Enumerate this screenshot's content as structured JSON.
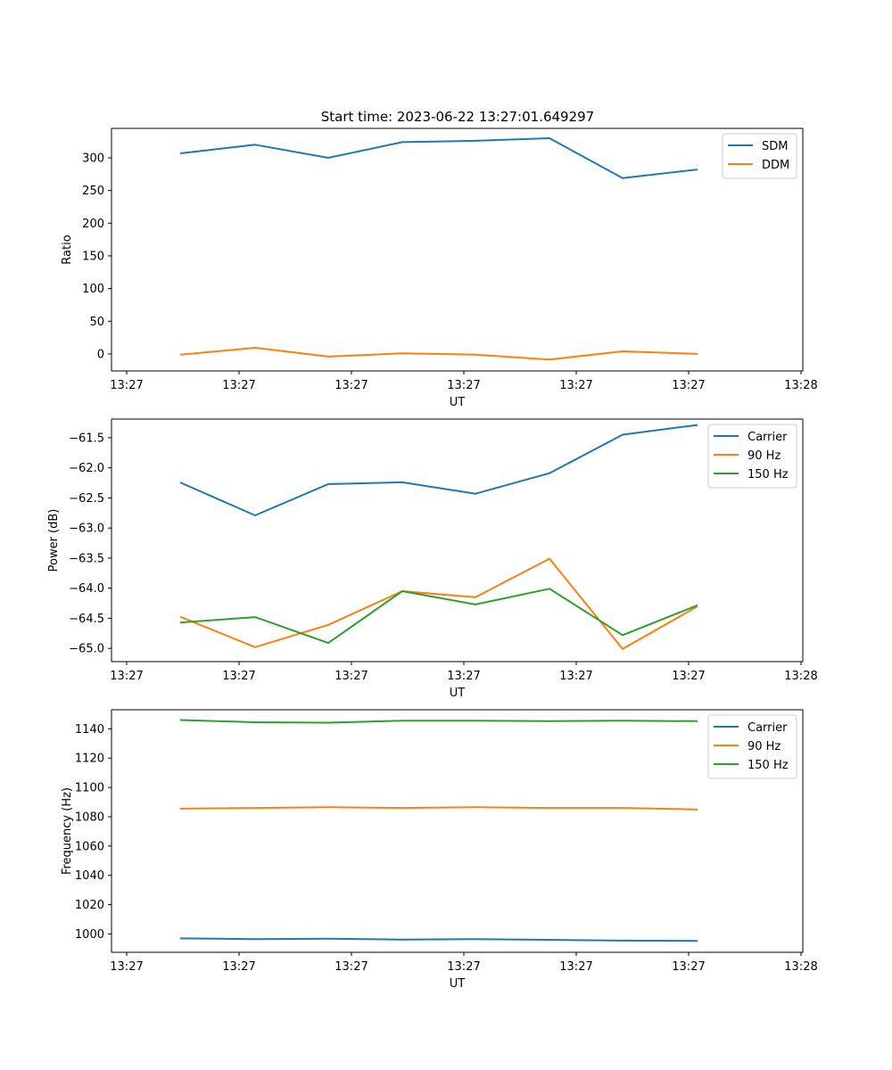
{
  "figure": {
    "title": "Start time: 2023-06-22 13:27:01.649297"
  },
  "chart_data": [
    {
      "type": "line",
      "xlabel": "UT",
      "ylabel": "Ratio",
      "x_tick_labels": [
        "13:27",
        "13:27",
        "13:27",
        "13:27",
        "13:27",
        "13:27",
        "13:28"
      ],
      "y_ticks": [
        0,
        50,
        100,
        150,
        200,
        250,
        300
      ],
      "ylim": [
        -26,
        345
      ],
      "legend_position": "top-right",
      "series": [
        {
          "name": "SDM",
          "color": "#1f77b4",
          "values": [
            307,
            320,
            300,
            324,
            326,
            330,
            269,
            282
          ]
        },
        {
          "name": "DDM",
          "color": "#ff7f0e",
          "values": [
            -1,
            9.5,
            -4,
            1,
            -1,
            -8.5,
            4,
            0
          ]
        }
      ]
    },
    {
      "type": "line",
      "xlabel": "UT",
      "ylabel": "Power (dB)",
      "x_tick_labels": [
        "13:27",
        "13:27",
        "13:27",
        "13:27",
        "13:27",
        "13:27",
        "13:28"
      ],
      "y_ticks": [
        -65.0,
        -64.5,
        -64.0,
        -63.5,
        -63.0,
        -62.5,
        -62.0,
        -61.5
      ],
      "y_tick_labels": [
        "−65.0",
        "−64.5",
        "−64.0",
        "−63.5",
        "−63.0",
        "−62.5",
        "−62.0",
        "−61.5"
      ],
      "ylim": [
        -65.22,
        -61.19
      ],
      "legend_position": "top-right",
      "series": [
        {
          "name": "Carrier",
          "color": "#1f77b4",
          "values": [
            -62.25,
            -62.79,
            -62.27,
            -62.24,
            -62.43,
            -62.09,
            -61.45,
            -61.29
          ]
        },
        {
          "name": "90 Hz",
          "color": "#ff7f0e",
          "values": [
            -64.48,
            -64.98,
            -64.61,
            -64.05,
            -64.15,
            -63.51,
            -65.01,
            -64.31
          ]
        },
        {
          "name": "150 Hz",
          "color": "#2ca02c",
          "values": [
            -64.57,
            -64.48,
            -64.91,
            -64.05,
            -64.27,
            -64.01,
            -64.78,
            -64.29
          ]
        }
      ]
    },
    {
      "type": "line",
      "xlabel": "UT",
      "ylabel": "Frequency (Hz)",
      "x_tick_labels": [
        "13:27",
        "13:27",
        "13:27",
        "13:27",
        "13:27",
        "13:27",
        "13:28"
      ],
      "y_ticks": [
        1000,
        1020,
        1040,
        1060,
        1080,
        1100,
        1120,
        1140
      ],
      "ylim": [
        987.5,
        1153
      ],
      "legend_position": "top-right",
      "series": [
        {
          "name": "Carrier",
          "color": "#1f77b4",
          "values": [
            997,
            996.5,
            996.8,
            996.2,
            996.5,
            996,
            995.5,
            995.3
          ]
        },
        {
          "name": "90 Hz",
          "color": "#ff7f0e",
          "values": [
            1085.5,
            1086,
            1086.5,
            1086,
            1086.5,
            1086,
            1086,
            1085
          ]
        },
        {
          "name": "150 Hz",
          "color": "#2ca02c",
          "values": [
            1146,
            1144.5,
            1144.2,
            1145.5,
            1145.5,
            1145.3,
            1145.5,
            1145.2
          ]
        }
      ]
    }
  ]
}
